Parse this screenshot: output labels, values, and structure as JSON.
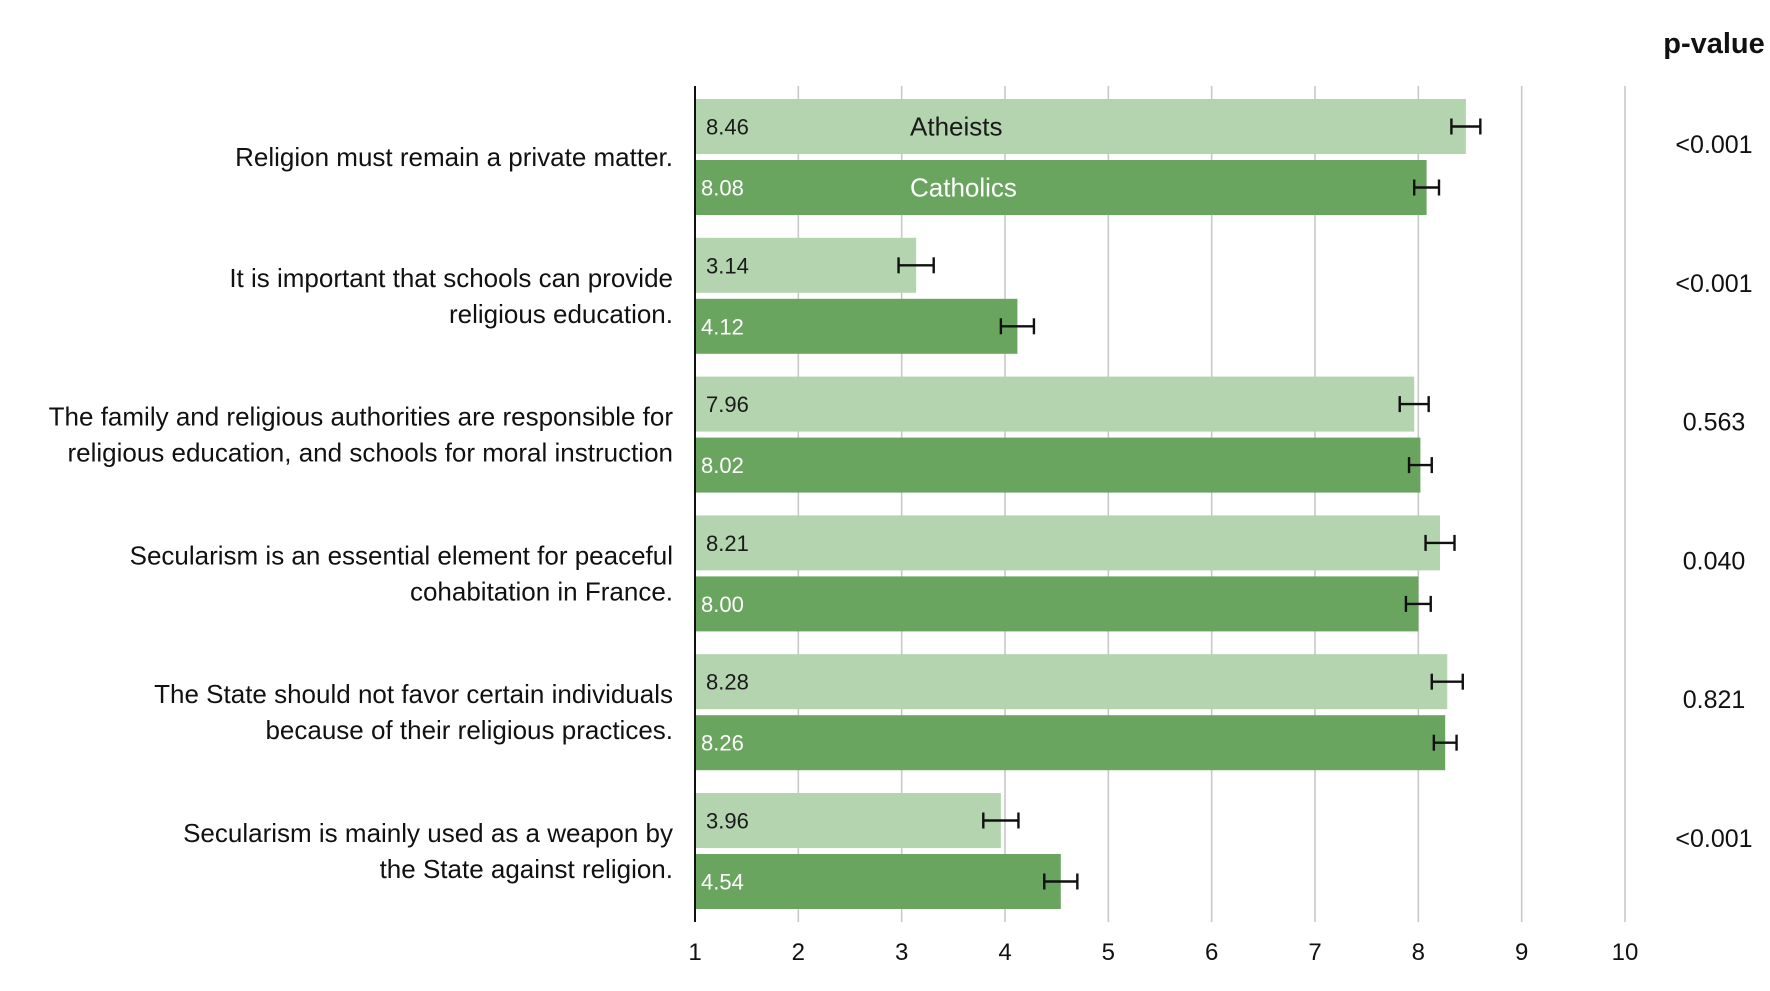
{
  "chart_data": {
    "type": "bar",
    "orientation": "horizontal",
    "categories": [
      "Religion must remain a private matter.",
      "It is important that schools can provide religious education.",
      "The family and religious authorities are responsible for religious education, and schools for moral instruction",
      "Secularism is an essential element for peaceful cohabitation in France.",
      "The State should not favor certain individuals because of their religious practices.",
      "Secularism is mainly used as a weapon by the State against religion."
    ],
    "category_label_lines": [
      [
        "Religion must remain a private matter."
      ],
      [
        "It is important that schools can provide",
        "religious education."
      ],
      [
        "The family and religious authorities are responsible for",
        "religious education, and schools for moral instruction"
      ],
      [
        "Secularism is an essential element for peaceful",
        "cohabitation in France."
      ],
      [
        "The State should not favor certain individuals",
        "because of their religious practices."
      ],
      [
        "Secularism is mainly used as a weapon by",
        "the State against religion."
      ]
    ],
    "series": [
      {
        "name": "Atheists",
        "color": "#b3d4ae",
        "label_color": "#1a1a1a",
        "values": [
          8.46,
          3.14,
          7.96,
          8.21,
          8.28,
          3.96
        ],
        "value_labels": [
          "8.46",
          "3.14",
          "7.96",
          "8.21",
          "8.28",
          "3.96"
        ],
        "error": [
          0.14,
          0.17,
          0.14,
          0.14,
          0.15,
          0.17
        ]
      },
      {
        "name": "Catholics",
        "color": "#6aa560",
        "label_color": "#ffffff",
        "values": [
          8.08,
          4.12,
          8.02,
          8.0,
          8.26,
          4.54
        ],
        "value_labels": [
          "8.08",
          "4.12",
          "8.02",
          "8.00",
          "8.26",
          "4.54"
        ],
        "error": [
          0.12,
          0.16,
          0.11,
          0.12,
          0.11,
          0.16
        ]
      }
    ],
    "p_value_header": "p-value",
    "p_values": [
      "<0.001",
      "<0.001",
      "0.563",
      "0.040",
      "0.821",
      "<0.001"
    ],
    "xlim": [
      1,
      10
    ],
    "x_ticks": [
      "1",
      "2",
      "3",
      "4",
      "5",
      "6",
      "7",
      "8",
      "9",
      "10"
    ],
    "grid": true,
    "legend": "inside first bar pair",
    "title": "",
    "xlabel": "",
    "ylabel": ""
  }
}
